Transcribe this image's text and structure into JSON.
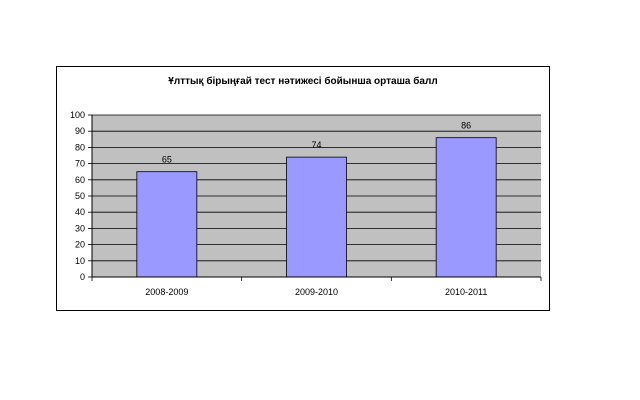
{
  "chart_data": {
    "type": "bar",
    "title": "Ұлттық бірыңғай тест нәтижесі бойынша орташа балл",
    "xlabel": "",
    "ylabel": "",
    "categories": [
      "2008-2009",
      "2009-2010",
      "2010-2011"
    ],
    "values": [
      65,
      74,
      86
    ],
    "data_labels": [
      "65",
      "74",
      "86"
    ],
    "ylim": [
      0,
      100
    ],
    "y_ticks": [
      "0",
      "10",
      "20",
      "30",
      "40",
      "50",
      "60",
      "70",
      "80",
      "90",
      "100"
    ],
    "grid": true,
    "legend": "none",
    "colors": {
      "bar": "#9999ff",
      "bar_border": "#000000",
      "plot_background": "#c0c0c0",
      "gridline": "#000000"
    }
  }
}
